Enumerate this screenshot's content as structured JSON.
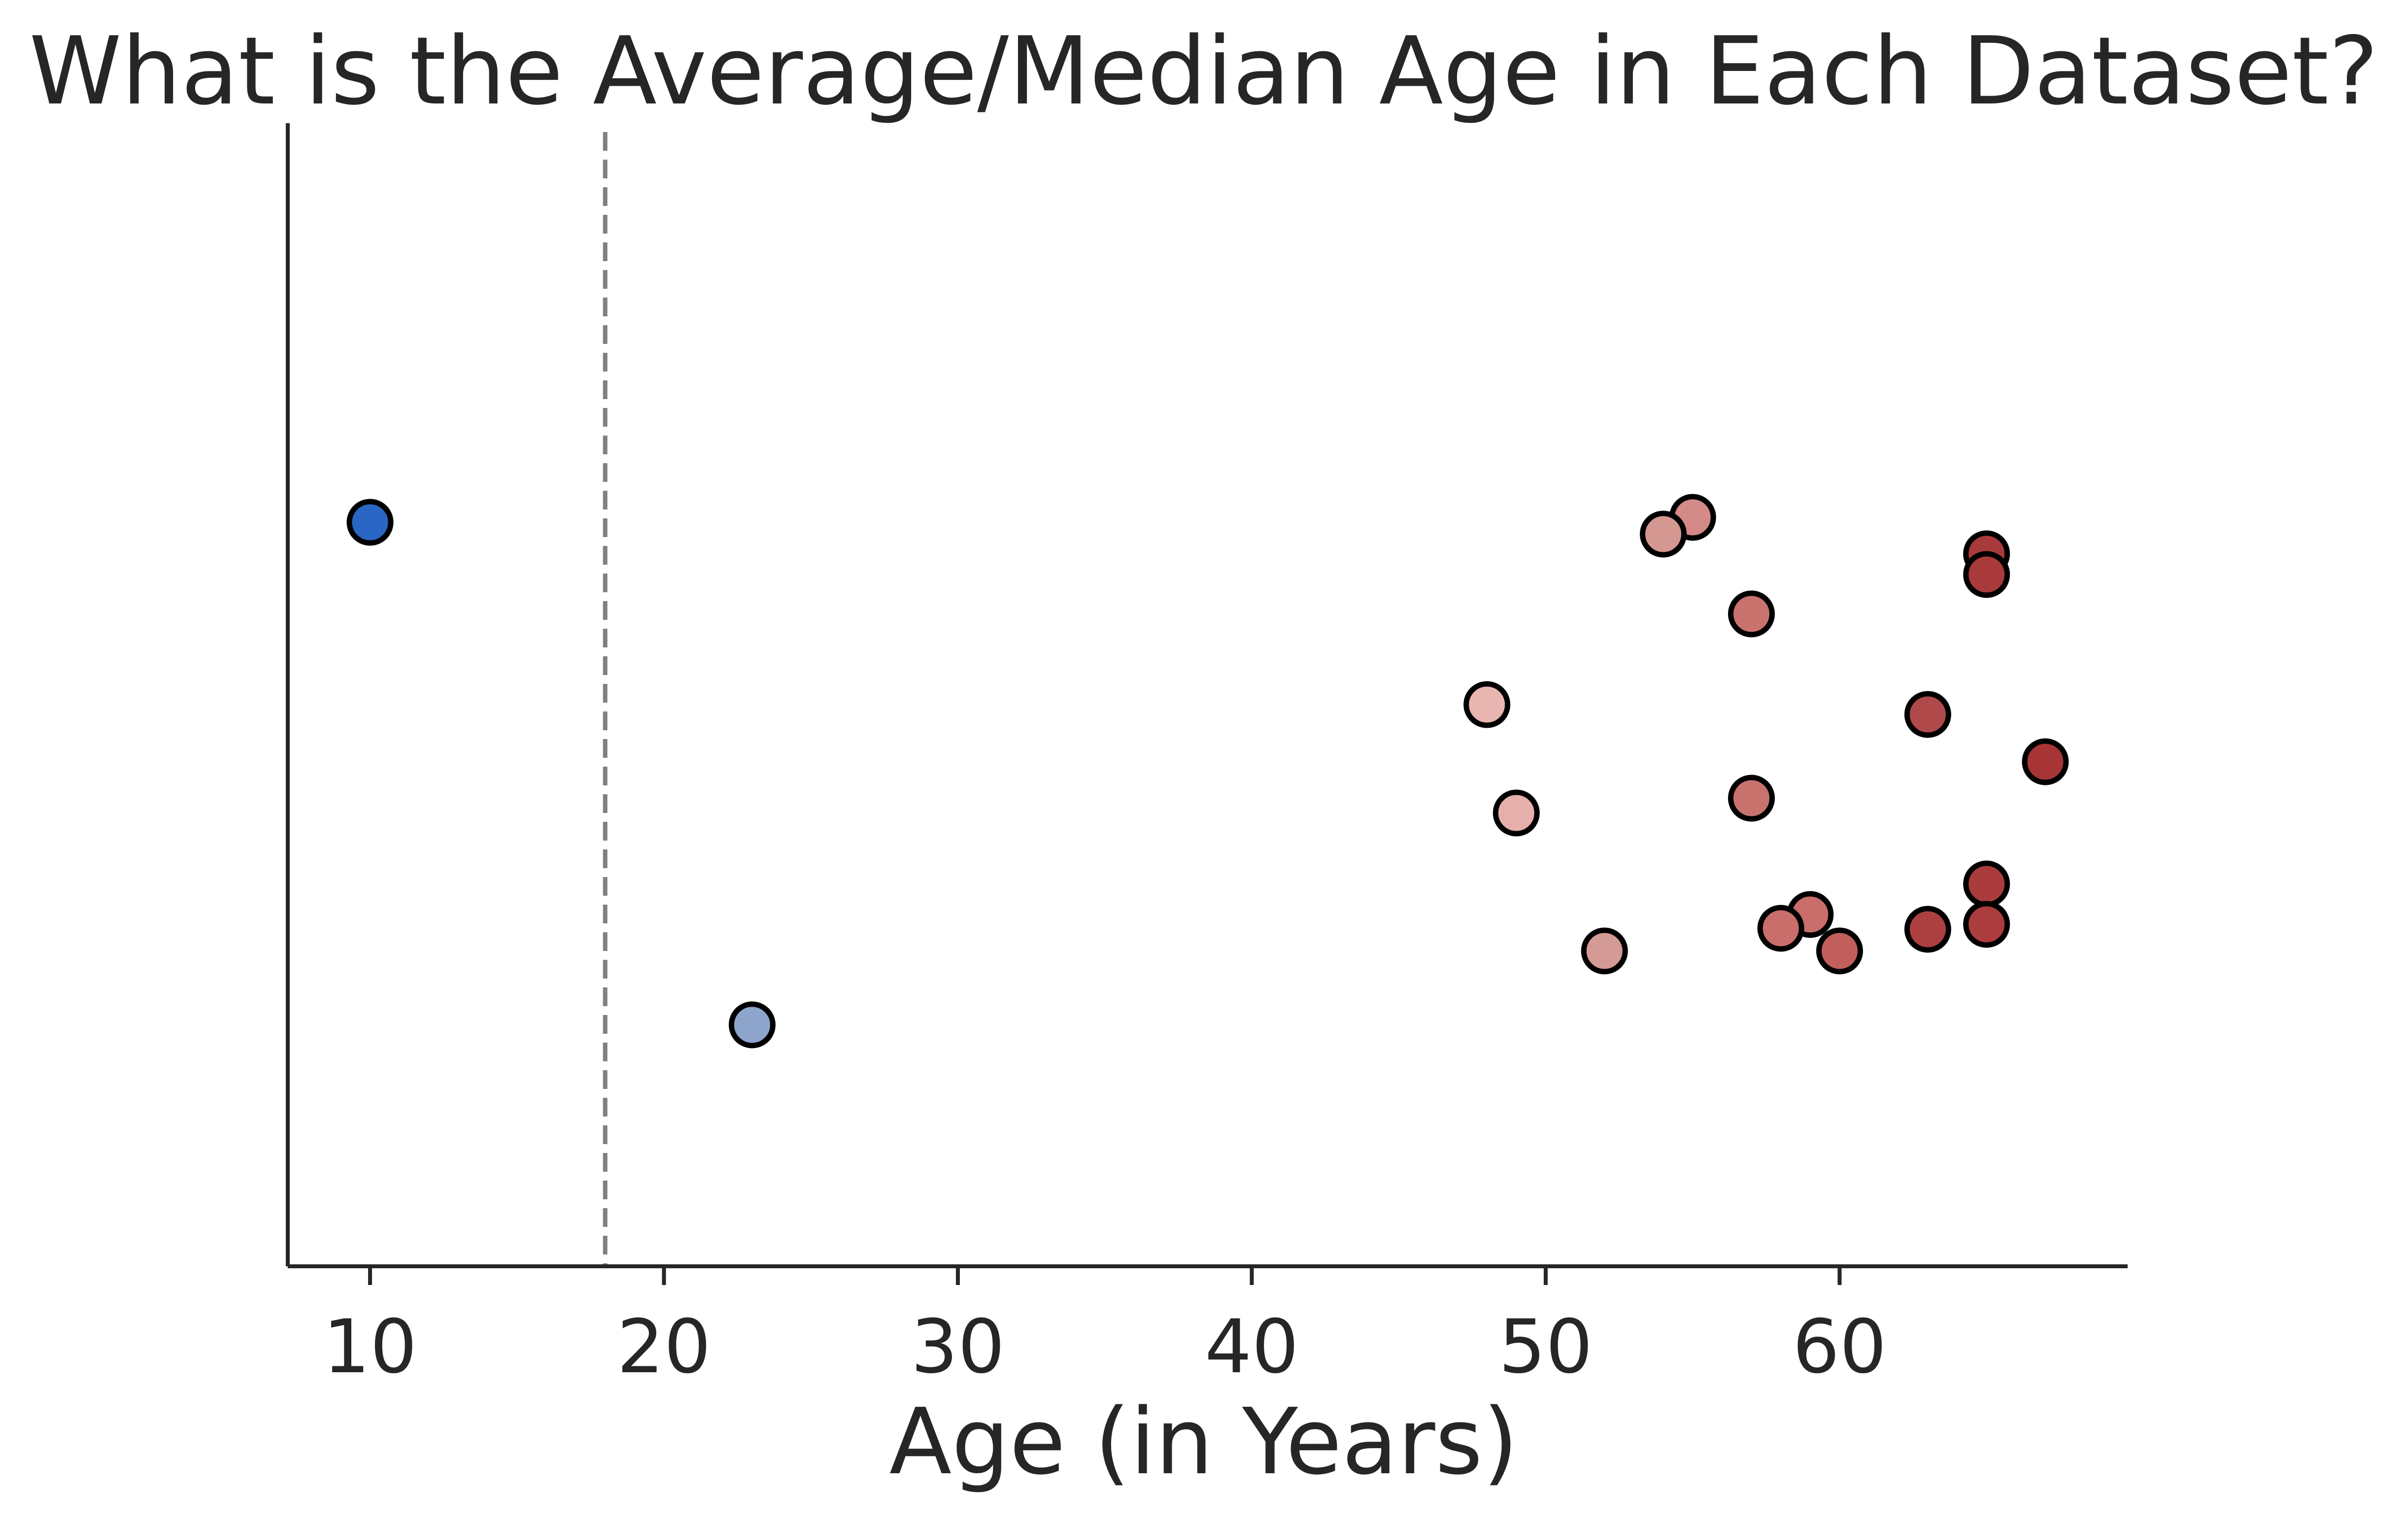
{
  "chart_data": {
    "type": "scatter",
    "title": "What is the Average/Median Age in Each Dataset?",
    "xlabel": "Age (in Years)",
    "ylabel": "",
    "xlim": [
      7.2,
      69.8
    ],
    "xticks": [
      10,
      20,
      30,
      40,
      50,
      60
    ],
    "y_axis_ticks": "none",
    "grid": false,
    "legend": "none",
    "reference_line": {
      "orientation": "vertical",
      "x": 18,
      "style": "dashed",
      "color": "#808080"
    },
    "points": [
      {
        "x": 10,
        "jitter": 0.18,
        "color": "#2a66c3"
      },
      {
        "x": 23,
        "jitter": -0.33,
        "color": "#8ea5cb"
      },
      {
        "x": 55,
        "jitter": 0.185,
        "color": "#d48a86"
      },
      {
        "x": 54,
        "jitter": 0.168,
        "color": "#d49792"
      },
      {
        "x": 65,
        "jitter": 0.148,
        "color": "#a93a3b"
      },
      {
        "x": 65,
        "jitter": 0.127,
        "color": "#a93a3b"
      },
      {
        "x": 57,
        "jitter": 0.087,
        "color": "#c9736f"
      },
      {
        "x": 48,
        "jitter": -0.005,
        "color": "#e8b5b0"
      },
      {
        "x": 63,
        "jitter": -0.015,
        "color": "#b0494a"
      },
      {
        "x": 67,
        "jitter": -0.063,
        "color": "#a73536"
      },
      {
        "x": 57,
        "jitter": -0.1,
        "color": "#c9736f"
      },
      {
        "x": 49,
        "jitter": -0.115,
        "color": "#e5b0ab"
      },
      {
        "x": 65,
        "jitter": -0.187,
        "color": "#ab3c3d"
      },
      {
        "x": 59,
        "jitter": -0.218,
        "color": "#c96e6a"
      },
      {
        "x": 58,
        "jitter": -0.232,
        "color": "#c96e6a"
      },
      {
        "x": 63,
        "jitter": -0.233,
        "color": "#ac3f40"
      },
      {
        "x": 65,
        "jitter": -0.228,
        "color": "#ac3d3e"
      },
      {
        "x": 52,
        "jitter": -0.255,
        "color": "#d49a95"
      },
      {
        "x": 60,
        "jitter": -0.255,
        "color": "#c25f5c"
      }
    ]
  }
}
